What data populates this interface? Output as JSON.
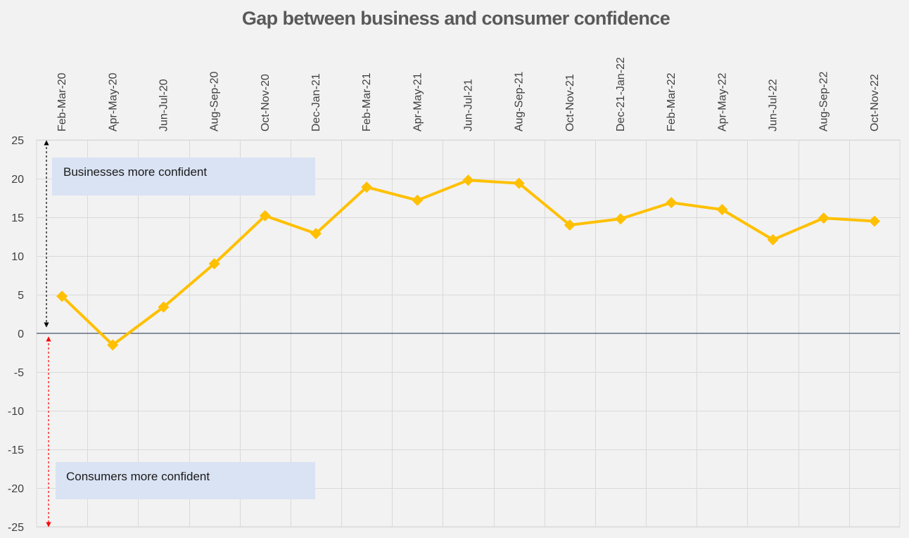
{
  "chart_data": {
    "type": "line",
    "title": "Gap between business and consumer confidence",
    "categories": [
      "Feb-Mar-20",
      "Apr-May-20",
      "Jun-Jul-20",
      "Aug-Sep-20",
      "Oct-Nov-20",
      "Dec-Jan-21",
      "Feb-Mar-21",
      "Apr-May-21",
      "Jun-Jul-21",
      "Aug-Sep-21",
      "Oct-Nov-21",
      "Dec-21-Jan-22",
      "Feb-Mar-22",
      "Apr-May-22",
      "Jun-Jul-22",
      "Aug-Sep-22",
      "Oct-Nov-22"
    ],
    "values": [
      4.8,
      -1.5,
      3.4,
      9.0,
      15.2,
      12.9,
      18.9,
      17.2,
      19.8,
      19.4,
      14.0,
      14.8,
      16.9,
      16.0,
      12.1,
      14.9,
      14.5
    ],
    "ylim": [
      -25,
      25
    ],
    "yticks": [
      25,
      20,
      15,
      10,
      5,
      0,
      -5,
      -10,
      -15,
      -20,
      -25
    ],
    "grid": true,
    "line_color": "#ffc000",
    "zero_line_color": "#44546a",
    "annotations": {
      "upper": "Businesses more confident",
      "lower": "Consumers more confident",
      "upper_arrow_color": "#000000",
      "lower_arrow_color": "#ff0000",
      "box_color": "#dae3f3"
    }
  }
}
